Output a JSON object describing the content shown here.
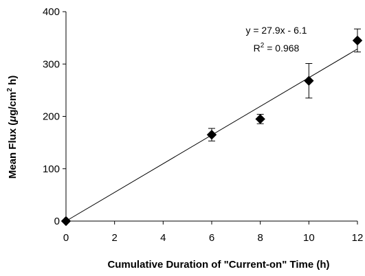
{
  "chart_data": {
    "type": "scatter",
    "title": "",
    "xlabel": "Cumulative Duration of \"Current-on\" Time (h)",
    "ylabel": "Mean Flux (μg/cm² h)",
    "ylabel_parts": {
      "main": "Mean Flux (",
      "mu": "μ",
      "unit": "g/cm",
      "sup": "2",
      "tail": " h)"
    },
    "xlim": [
      0,
      12
    ],
    "ylim": [
      0,
      400
    ],
    "x_ticks": [
      0,
      2,
      4,
      6,
      8,
      10,
      12
    ],
    "y_ticks": [
      0,
      100,
      200,
      300,
      400
    ],
    "x_tick_labels": [
      "0",
      "2",
      "4",
      "6",
      "8",
      "10",
      "12"
    ],
    "y_tick_labels": [
      "0",
      "100",
      "200",
      "300",
      "400"
    ],
    "grid": false,
    "legend": "none",
    "series": [
      {
        "marker": "diamond",
        "color": "#000000",
        "points": [
          {
            "x": 0,
            "y": 0,
            "err": 0
          },
          {
            "x": 6,
            "y": 165,
            "err": 12
          },
          {
            "x": 8,
            "y": 195,
            "err": 9
          },
          {
            "x": 10,
            "y": 268,
            "err": 33
          },
          {
            "x": 12,
            "y": 345,
            "err": 22
          }
        ]
      }
    ],
    "trendline": {
      "slope": 27.9,
      "intercept": -6.1,
      "x_range": [
        0,
        12
      ],
      "equation_label": "y = 27.9x - 6.1",
      "r2_label_prefix": "R",
      "r2_label_sup": "2",
      "r2_label_value": " = 0.968"
    }
  }
}
